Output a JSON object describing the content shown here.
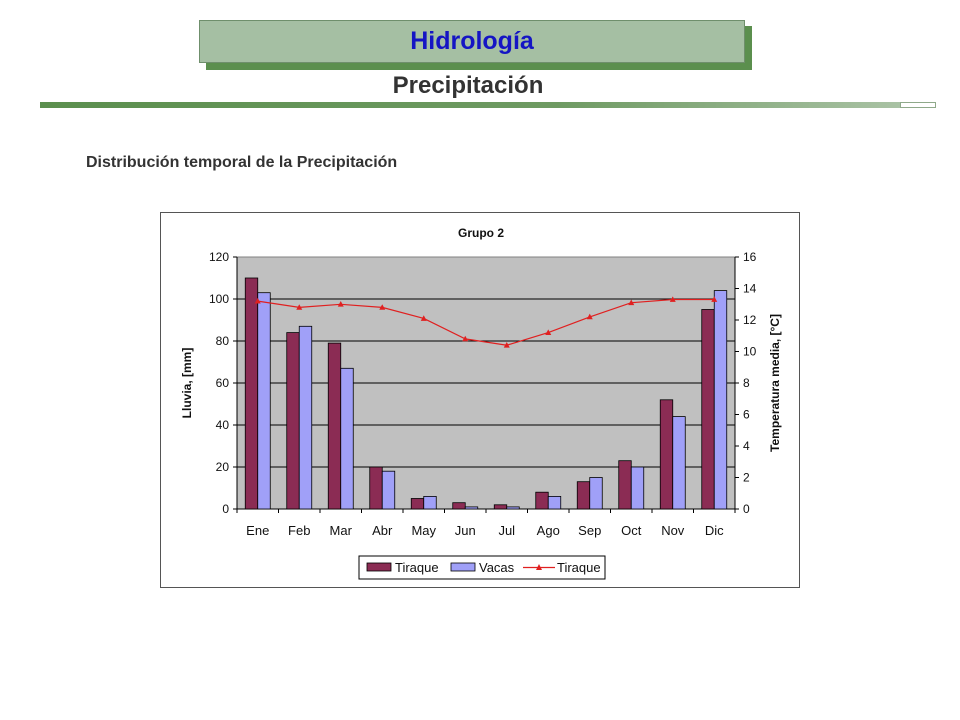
{
  "header": {
    "title": "Hidrología",
    "subtitle": "Precipitación",
    "section": "Distribución temporal de la Precipitación"
  },
  "colors": {
    "title_text": "#1515c4",
    "title_bg": "#a5bfa3",
    "accent_green": "#5b8f4e",
    "bar_tiraque": "#8b2c54",
    "bar_vacas": "#a0a0f8",
    "line_tiraque": "#e02020",
    "plot_bg": "#c0c0c0"
  },
  "chart_data": {
    "type": "bar",
    "title": "Grupo 2",
    "categories": [
      "Ene",
      "Feb",
      "Mar",
      "Abr",
      "May",
      "Jun",
      "Jul",
      "Ago",
      "Sep",
      "Oct",
      "Nov",
      "Dic"
    ],
    "ylabel": "Lluvia, [mm]",
    "y2label": "Temperatura media, [°C]",
    "ylim": [
      0,
      120
    ],
    "y2lim": [
      0,
      16
    ],
    "yticks": [
      "0",
      "20",
      "40",
      "60",
      "80",
      "100",
      "120"
    ],
    "y2ticks": [
      "0",
      "2",
      "4",
      "6",
      "8",
      "10",
      "12",
      "14",
      "16"
    ],
    "grid": true,
    "legend_position": "bottom",
    "series": [
      {
        "name": "Tiraque",
        "kind": "bar",
        "axis": "left",
        "values": [
          110,
          84,
          79,
          20,
          5,
          3,
          2,
          8,
          13,
          23,
          52,
          95
        ]
      },
      {
        "name": "Vacas",
        "kind": "bar",
        "axis": "left",
        "values": [
          103,
          87,
          67,
          18,
          6,
          1,
          1,
          6,
          15,
          20,
          44,
          104
        ]
      },
      {
        "name": "Tiraque",
        "kind": "line",
        "axis": "right",
        "values": [
          13.2,
          12.8,
          13.0,
          12.8,
          12.1,
          10.8,
          10.4,
          11.2,
          12.2,
          13.1,
          13.3,
          13.3
        ]
      }
    ]
  }
}
